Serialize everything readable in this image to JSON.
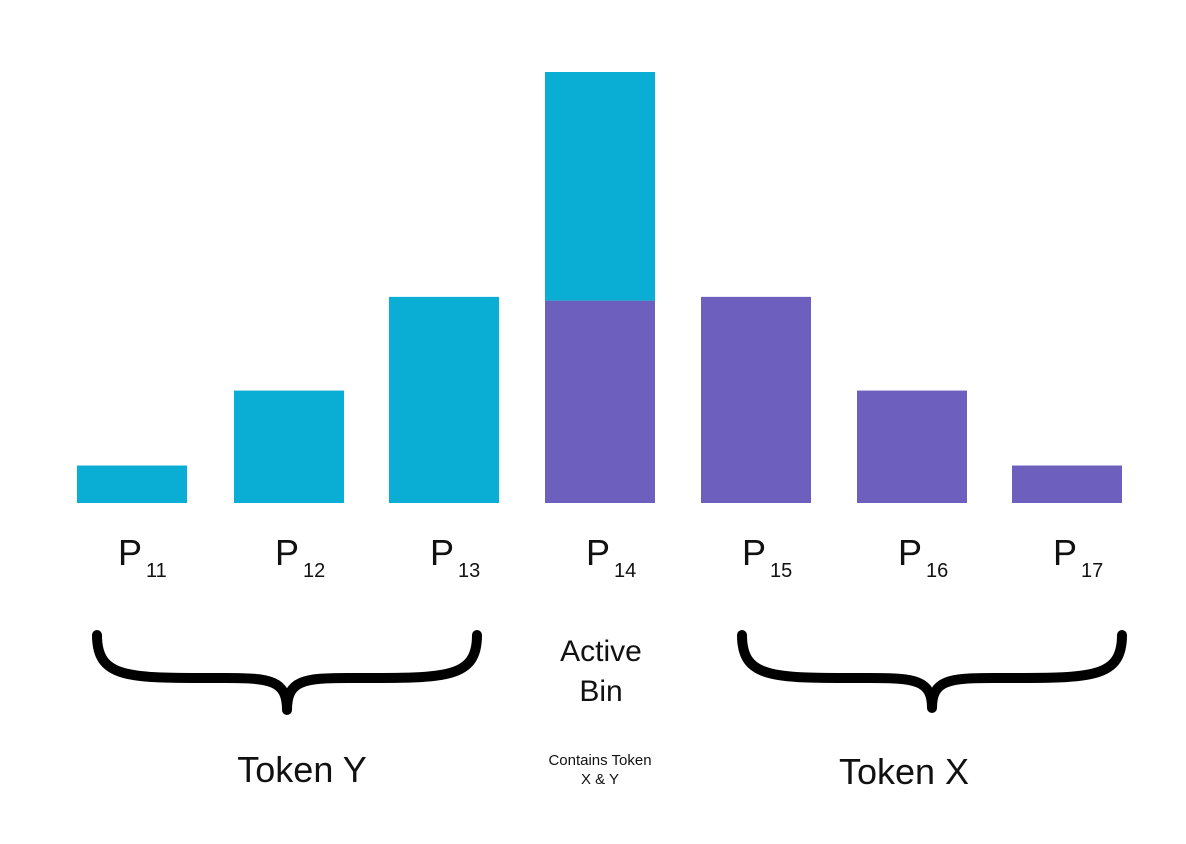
{
  "colors": {
    "token_y": "#0aadd4",
    "token_x": "#6d5fbe",
    "text": "#111111",
    "brace": "#000000"
  },
  "chart_data": {
    "type": "bar",
    "stacked": true,
    "categories": [
      {
        "base": "P",
        "sub": "11"
      },
      {
        "base": "P",
        "sub": "12"
      },
      {
        "base": "P",
        "sub": "13"
      },
      {
        "base": "P",
        "sub": "14"
      },
      {
        "base": "P",
        "sub": "15"
      },
      {
        "base": "P",
        "sub": "16"
      },
      {
        "base": "P",
        "sub": "17"
      }
    ],
    "series": [
      {
        "key": "token_y",
        "values": [
          1,
          3,
          5.5,
          6.1,
          0,
          0,
          0
        ]
      },
      {
        "key": "token_x",
        "values": [
          0,
          0,
          0,
          5.4,
          5.5,
          3,
          1
        ]
      }
    ],
    "ylim": [
      0,
      11.5
    ],
    "grid": false,
    "axes_visible": false
  },
  "groups": {
    "token_y": {
      "label": "Token Y"
    },
    "active": {
      "label_line1": "Active",
      "label_line2": "Bin",
      "note_line1": "Contains Token",
      "note_line2": "X & Y"
    },
    "token_x": {
      "label": "Token X"
    }
  }
}
